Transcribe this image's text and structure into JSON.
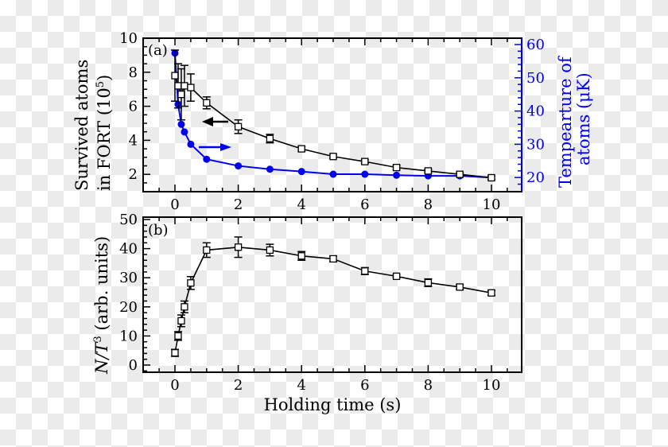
{
  "chart_data": [
    {
      "panel_label": "(a)",
      "type": "line",
      "xlabel": "",
      "x": [
        0,
        0.1,
        0.2,
        0.3,
        0.5,
        1,
        2,
        3,
        4,
        5,
        6,
        7,
        8,
        9,
        10
      ],
      "xlim": [
        -1,
        11
      ],
      "xticks": [
        0,
        2,
        4,
        6,
        8,
        10
      ],
      "series": [
        {
          "name": "Survived atoms in FORT",
          "axis": "left",
          "color": "#000000",
          "marker": "open-square",
          "values": [
            7.8,
            7.2,
            6.7,
            7.2,
            7.1,
            6.2,
            4.8,
            4.1,
            3.5,
            3.05,
            2.75,
            2.4,
            2.2,
            2.0,
            1.8
          ],
          "errors": [
            1.5,
            1.3,
            1.5,
            1.2,
            0.8,
            0.35,
            0.4,
            0.25,
            0.12,
            0.1,
            0.1,
            0.12,
            0.1,
            0.08,
            0.1
          ]
        },
        {
          "name": "Tempearture of atoms",
          "axis": "right",
          "color": "#0000ee",
          "marker": "filled-circle",
          "values": [
            57.4,
            42.0,
            36.0,
            33.7,
            30.0,
            25.5,
            23.5,
            22.5,
            21.8,
            21.0,
            21.0,
            20.7,
            20.5,
            20.5,
            20.0
          ]
        }
      ],
      "ylabel_left": [
        "Survived atoms",
        "in FORT (10",
        "5",
        ")"
      ],
      "ylim_left": [
        1,
        10
      ],
      "yticks_left": [
        2,
        4,
        6,
        8,
        10
      ],
      "ylabel_right": [
        "Tempearture of",
        "atoms (μK)"
      ],
      "ylim_right": [
        16,
        62
      ],
      "yticks_right": [
        20,
        30,
        40,
        50,
        60
      ],
      "annotations": [
        {
          "type": "arrow",
          "direction": "left",
          "color": "#000000",
          "meaning": "left axis"
        },
        {
          "type": "arrow",
          "direction": "right",
          "color": "#0000ee",
          "meaning": "right axis"
        }
      ],
      "grid": false
    },
    {
      "panel_label": "(b)",
      "type": "line",
      "xlabel": "Holding time (s)",
      "x": [
        0,
        0.1,
        0.2,
        0.3,
        0.5,
        1,
        2,
        3,
        4,
        5,
        6,
        7,
        8,
        9,
        10
      ],
      "xlim": [
        -1,
        11
      ],
      "xticks": [
        0,
        2,
        4,
        6,
        8,
        10
      ],
      "series": [
        {
          "name": "N/T^3",
          "axis": "left",
          "color": "#000000",
          "marker": "open-square",
          "values": [
            4.2,
            10.0,
            15.2,
            20.0,
            28.2,
            39.5,
            40.5,
            39.5,
            37.5,
            36.5,
            32.3,
            30.5,
            28.3,
            26.8,
            24.8
          ],
          "errors": [
            1.2,
            1.5,
            2.0,
            2.0,
            2.2,
            2.5,
            3.5,
            2.0,
            1.5,
            1.0,
            1.2,
            0.5,
            1.3,
            0.8,
            0.8
          ]
        }
      ],
      "ylabel_left": [
        "N/T",
        "3",
        " (arb. units)"
      ],
      "ylim_left": [
        -3,
        50
      ],
      "yticks_left": [
        0,
        10,
        20,
        30,
        40,
        50
      ],
      "grid": false
    }
  ],
  "figure": {
    "panel_a_label": "(a)",
    "panel_b_label": "(b)",
    "xlabel": "Holding time (s)",
    "ylabel_a_line1": "Survived atoms",
    "ylabel_a_line2": "in FORT (10",
    "ylabel_a_sup": "5",
    "ylabel_a_close": ")",
    "ylabel_a_right_line1": "Tempearture of",
    "ylabel_a_right_line2": "atoms (μK)",
    "ylabel_b_main": "N/T",
    "ylabel_b_sup": "3",
    "ylabel_b_rest": " (arb. units)",
    "blue": "#0000ee"
  }
}
